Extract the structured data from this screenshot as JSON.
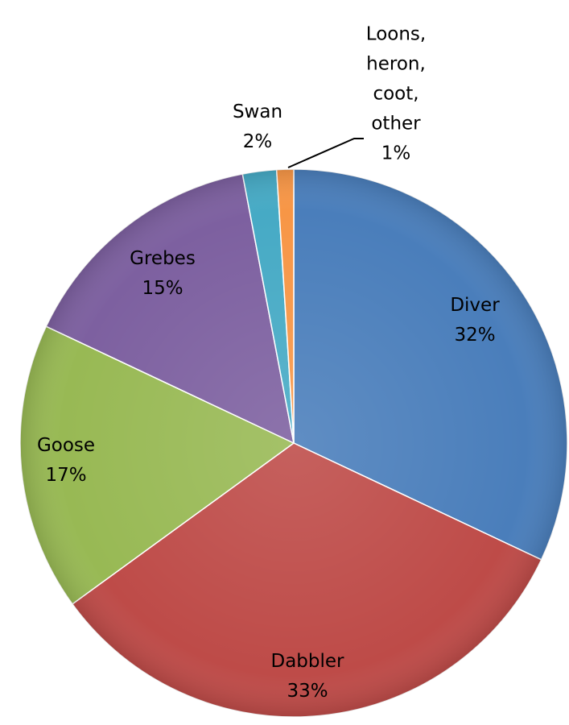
{
  "chart_data": {
    "type": "pie",
    "categories": [
      "Diver",
      "Dabbler",
      "Goose",
      "Grebes",
      "Swan",
      "Loons, heron, coot, other"
    ],
    "values": [
      32,
      33,
      17,
      15,
      2,
      1
    ],
    "value_labels": [
      "32%",
      "33%",
      "17%",
      "15%",
      "2%",
      "1%"
    ],
    "colors": [
      "#4a7ebb",
      "#be4b48",
      "#98b954",
      "#7d60a0",
      "#46aac5",
      "#f79646"
    ]
  }
}
